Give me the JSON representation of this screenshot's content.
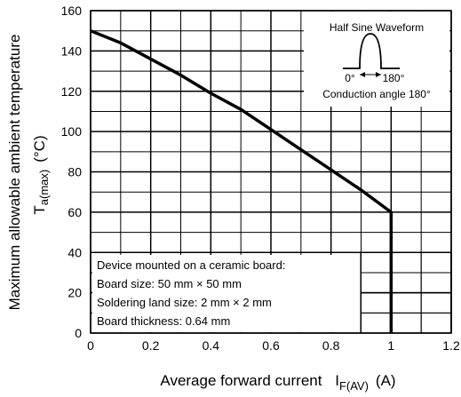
{
  "chart_data": {
    "type": "line",
    "xlabel_main": "Average forward current",
    "xlabel_symbol": "I",
    "xlabel_subscript": "F(AV)",
    "xlabel_unit": "(A)",
    "ylabel_main": "Maximum allowable ambient temperature",
    "ylabel_symbol": "T",
    "ylabel_subscript": "a(max)",
    "ylabel_unit": "(°C)",
    "xlim": [
      0,
      1.2
    ],
    "ylim": [
      0,
      160
    ],
    "x_ticks": [
      0,
      0.2,
      0.4,
      0.6,
      0.8,
      1,
      1.2
    ],
    "x_tick_labels": [
      "0",
      "0.2",
      "0.4",
      "0.6",
      "0.8",
      "1",
      "1.2"
    ],
    "y_ticks": [
      0,
      20,
      40,
      60,
      80,
      100,
      120,
      140,
      160
    ],
    "y_tick_labels": [
      "0",
      "20",
      "40",
      "60",
      "80",
      "100",
      "120",
      "140",
      "160"
    ],
    "grid": true,
    "series": [
      {
        "x": [
          0,
          0.1,
          0.2,
          0.3,
          0.4,
          0.5,
          0.6,
          0.7,
          0.8,
          0.9,
          1.0,
          1.0
        ],
        "y": [
          150,
          144,
          136,
          128,
          119,
          111,
          101,
          91,
          81,
          71,
          60,
          0
        ]
      }
    ],
    "waveform_inset": {
      "title": "Half Sine Waveform",
      "start_label": "0°",
      "end_label": "180°",
      "caption": "Conduction angle 180°"
    },
    "notes": [
      "Device mounted on a ceramic board:",
      "Board size: 50 mm × 50 mm",
      "Soldering land size: 2 mm × 2 mm",
      "Board thickness: 0.64 mm"
    ]
  }
}
